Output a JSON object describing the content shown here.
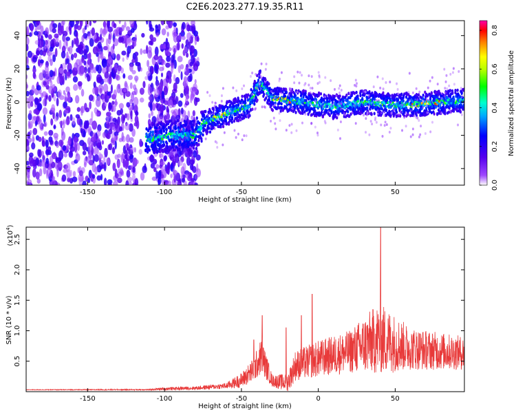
{
  "title": "C2E6.2023.277.19.35.R11",
  "colors": {
    "snr_line": "#e83a3a",
    "axis": "#000000"
  },
  "chart_data": [
    {
      "type": "heatmap",
      "title": "C2E6.2023.277.19.35.R11",
      "xlabel": "Height of straight line (km)",
      "ylabel": "Frequency (Hz)",
      "xlim": [
        -190,
        95
      ],
      "ylim": [
        -50,
        49
      ],
      "x_ticks": [
        "-150",
        "-100",
        "-50",
        "0",
        "50"
      ],
      "y_ticks": [
        "40",
        "20",
        "0",
        "-20",
        "-40"
      ],
      "colorbar": {
        "label": "Normalized spectral amplitude",
        "range": [
          0,
          0.85
        ],
        "ticks": [
          "0.0",
          "0.2",
          "0.4",
          "0.6",
          "0.8"
        ],
        "colormap": "rainbow"
      },
      "features": {
        "broadband_noise_x": [
          -190,
          -78
        ],
        "ridge": [
          {
            "x": -110,
            "y": -22
          },
          {
            "x": -95,
            "y": -20
          },
          {
            "x": -80,
            "y": -20
          },
          {
            "x": -75,
            "y": -13
          },
          {
            "x": -60,
            "y": -7
          },
          {
            "x": -45,
            "y": -2
          },
          {
            "x": -38,
            "y": 12
          },
          {
            "x": -30,
            "y": 2
          },
          {
            "x": -10,
            "y": 0
          },
          {
            "x": 10,
            "y": -3
          },
          {
            "x": 30,
            "y": 0
          },
          {
            "x": 50,
            "y": -2
          },
          {
            "x": 70,
            "y": -1
          },
          {
            "x": 95,
            "y": 1
          }
        ]
      }
    },
    {
      "type": "line",
      "xlabel": "Height of straight line (km)",
      "ylabel": "SNR (10 * v/v)",
      "y_multiplier": "(x10",
      "y_multiplier_exp": "4",
      "xlim": [
        -190,
        95
      ],
      "ylim": [
        0,
        2.7
      ],
      "x_ticks": [
        "-150",
        "-100",
        "-50",
        "0",
        "50"
      ],
      "y_ticks": [
        "2.5",
        "2.0",
        "1.5",
        "1.0",
        "0.5"
      ],
      "series": [
        {
          "envelope": [
            {
              "x": -190,
              "base": 0.03,
              "amp": 0.01
            },
            {
              "x": -110,
              "base": 0.03,
              "amp": 0.02
            },
            {
              "x": -100,
              "base": 0.04,
              "amp": 0.05
            },
            {
              "x": -80,
              "base": 0.05,
              "amp": 0.06
            },
            {
              "x": -60,
              "base": 0.08,
              "amp": 0.1
            },
            {
              "x": -50,
              "base": 0.15,
              "amp": 0.25
            },
            {
              "x": -42,
              "base": 0.3,
              "amp": 0.4
            },
            {
              "x": -37,
              "base": 0.5,
              "amp": 0.6
            },
            {
              "x": -30,
              "base": 0.15,
              "amp": 0.2
            },
            {
              "x": -20,
              "base": 0.1,
              "amp": 0.3
            },
            {
              "x": -15,
              "base": 0.35,
              "amp": 0.5
            },
            {
              "x": 0,
              "base": 0.45,
              "amp": 0.6
            },
            {
              "x": 20,
              "base": 0.55,
              "amp": 0.7
            },
            {
              "x": 40,
              "base": 0.7,
              "amp": 1.2
            },
            {
              "x": 60,
              "base": 0.6,
              "amp": 0.7
            },
            {
              "x": 95,
              "base": 0.55,
              "amp": 0.55
            }
          ],
          "peaks": [
            {
              "x": 40.5,
              "y": 2.7
            },
            {
              "x": -36.5,
              "y": 1.25
            },
            {
              "x": -42,
              "y": 0.85
            },
            {
              "x": -21,
              "y": 1.05
            },
            {
              "x": -11,
              "y": 1.25
            },
            {
              "x": -4,
              "y": 1.6
            }
          ]
        }
      ]
    }
  ]
}
